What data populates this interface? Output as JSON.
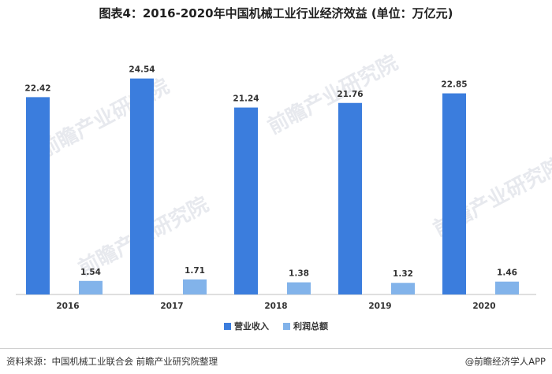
{
  "chart_data": {
    "type": "bar",
    "title": "图表4：2016-2020年中国机械工业行业经济效益 (单位：万亿元)",
    "categories": [
      "2016",
      "2017",
      "2018",
      "2019",
      "2020"
    ],
    "series": [
      {
        "name": "营业收入",
        "values": [
          22.42,
          24.54,
          21.24,
          21.76,
          22.85
        ],
        "color": "#3b7ddd"
      },
      {
        "name": "利润总额",
        "values": [
          1.54,
          1.71,
          1.38,
          1.32,
          1.46
        ],
        "color": "#82b3ea"
      }
    ],
    "ylim": [
      0,
      26.3
    ],
    "grid": false,
    "legend": "bottom-center"
  },
  "footer": {
    "source": "资料来源：中国机械工业联合会 前瞻产业研究院整理",
    "copyright": "@前瞻经济学人APP"
  },
  "watermark": {
    "text": "前瞻产业研究院"
  }
}
